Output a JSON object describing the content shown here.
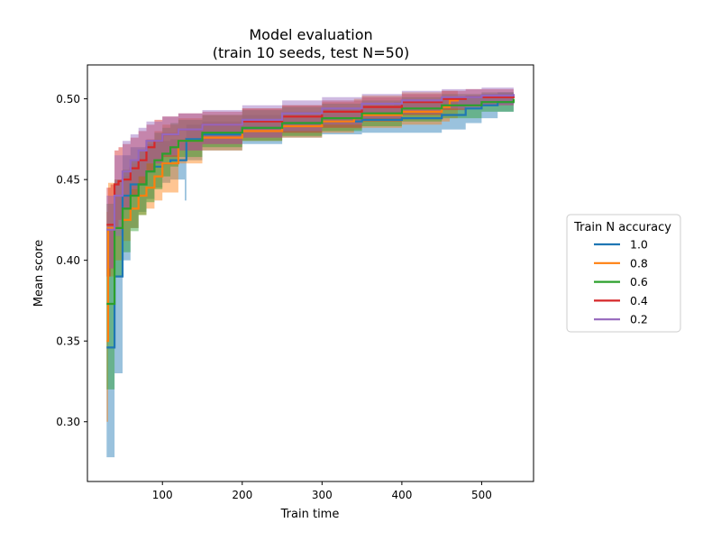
{
  "chart_data": {
    "type": "line",
    "title": "Model evaluation",
    "subtitle": "(train 10 seeds, test N=50)",
    "xlabel": "Train time",
    "ylabel": "Mean score",
    "xlim": [
      6,
      565
    ],
    "ylim": [
      0.263,
      0.521
    ],
    "xticks": [
      100,
      200,
      300,
      400,
      500
    ],
    "xtick_labels": [
      "100",
      "200",
      "300",
      "400",
      "500"
    ],
    "yticks": [
      0.3,
      0.35,
      0.4,
      0.45,
      0.5
    ],
    "ytick_labels": [
      "0.30",
      "0.35",
      "0.40",
      "0.45",
      "0.50"
    ],
    "grid": false,
    "legend": {
      "title": "Train N accuracy",
      "placement": "center-right-outside"
    },
    "band_opacity": 0.45,
    "series": [
      {
        "name": "1.0",
        "color": "#1f77b4",
        "x": [
          30,
          40,
          50,
          60,
          70,
          80,
          90,
          100,
          110,
          128,
          130,
          150,
          200,
          250,
          300,
          350,
          390,
          400,
          450,
          480,
          500,
          520,
          540
        ],
        "y": [
          0.346,
          0.39,
          0.44,
          0.447,
          0.447,
          0.455,
          0.458,
          0.46,
          0.462,
          0.462,
          0.475,
          0.478,
          0.482,
          0.485,
          0.486,
          0.487,
          0.487,
          0.488,
          0.49,
          0.494,
          0.496,
          0.498,
          0.499
        ],
        "lower": [
          0.278,
          0.33,
          0.4,
          0.42,
          0.43,
          0.438,
          0.445,
          0.448,
          0.45,
          0.437,
          0.462,
          0.468,
          0.472,
          0.476,
          0.478,
          0.479,
          0.479,
          0.479,
          0.481,
          0.485,
          0.488,
          0.492,
          0.494
        ],
        "upper": [
          0.42,
          0.44,
          0.465,
          0.47,
          0.47,
          0.472,
          0.474,
          0.474,
          0.475,
          0.476,
          0.484,
          0.486,
          0.49,
          0.492,
          0.494,
          0.496,
          0.498,
          0.499,
          0.501,
          0.502,
          0.503,
          0.504,
          0.505
        ]
      },
      {
        "name": "0.8",
        "color": "#ff7f0e",
        "x": [
          30,
          32,
          40,
          50,
          60,
          70,
          80,
          90,
          100,
          120,
          150,
          200,
          250,
          300,
          340,
          350,
          400,
          450,
          460,
          470
        ],
        "y": [
          0.35,
          0.42,
          0.42,
          0.425,
          0.432,
          0.44,
          0.445,
          0.452,
          0.46,
          0.474,
          0.476,
          0.48,
          0.483,
          0.486,
          0.488,
          0.49,
          0.492,
          0.495,
          0.499,
          0.5
        ],
        "lower": [
          0.3,
          0.39,
          0.4,
          0.412,
          0.42,
          0.428,
          0.432,
          0.437,
          0.442,
          0.46,
          0.468,
          0.474,
          0.476,
          0.479,
          0.481,
          0.482,
          0.484,
          0.486,
          0.488,
          0.49
        ],
        "upper": [
          0.43,
          0.448,
          0.45,
          0.452,
          0.46,
          0.468,
          0.475,
          0.48,
          0.484,
          0.488,
          0.49,
          0.494,
          0.496,
          0.498,
          0.5,
          0.502,
          0.504,
          0.505,
          0.505,
          0.506
        ]
      },
      {
        "name": "0.6",
        "color": "#2ca02c",
        "x": [
          30,
          40,
          50,
          60,
          70,
          80,
          90,
          100,
          110,
          120,
          150,
          200,
          250,
          300,
          350,
          400,
          450,
          500,
          540
        ],
        "y": [
          0.373,
          0.42,
          0.432,
          0.44,
          0.447,
          0.455,
          0.462,
          0.466,
          0.47,
          0.474,
          0.479,
          0.482,
          0.485,
          0.488,
          0.491,
          0.494,
          0.496,
          0.498,
          0.5
        ],
        "lower": [
          0.32,
          0.39,
          0.405,
          0.418,
          0.428,
          0.436,
          0.444,
          0.452,
          0.458,
          0.464,
          0.47,
          0.474,
          0.477,
          0.48,
          0.483,
          0.486,
          0.488,
          0.492,
          0.495
        ],
        "upper": [
          0.435,
          0.45,
          0.456,
          0.462,
          0.468,
          0.474,
          0.479,
          0.482,
          0.485,
          0.487,
          0.49,
          0.493,
          0.495,
          0.497,
          0.499,
          0.501,
          0.503,
          0.504,
          0.505
        ]
      },
      {
        "name": "0.4",
        "color": "#d62728",
        "x": [
          30,
          35,
          40,
          45,
          50,
          60,
          70,
          80,
          90,
          100,
          120,
          150,
          200,
          250,
          300,
          350,
          400,
          450,
          480,
          500,
          540
        ],
        "y": [
          0.422,
          0.422,
          0.447,
          0.449,
          0.45,
          0.457,
          0.462,
          0.47,
          0.474,
          0.478,
          0.481,
          0.484,
          0.486,
          0.489,
          0.492,
          0.495,
          0.498,
          0.5,
          0.501,
          0.501,
          0.502
        ],
        "lower": [
          0.39,
          0.395,
          0.42,
          0.425,
          0.432,
          0.44,
          0.447,
          0.455,
          0.46,
          0.464,
          0.468,
          0.472,
          0.476,
          0.479,
          0.482,
          0.486,
          0.49,
          0.493,
          0.495,
          0.496,
          0.497
        ],
        "upper": [
          0.445,
          0.447,
          0.468,
          0.47,
          0.472,
          0.476,
          0.48,
          0.484,
          0.487,
          0.489,
          0.491,
          0.492,
          0.494,
          0.496,
          0.499,
          0.501,
          0.503,
          0.505,
          0.506,
          0.506,
          0.507
        ]
      },
      {
        "name": "0.2",
        "color": "#9467bd",
        "x": [
          30,
          40,
          50,
          60,
          70,
          80,
          100,
          120,
          150,
          200,
          250,
          300,
          350,
          400,
          450,
          500,
          540
        ],
        "y": [
          0.419,
          0.44,
          0.455,
          0.462,
          0.468,
          0.474,
          0.478,
          0.481,
          0.484,
          0.487,
          0.491,
          0.494,
          0.497,
          0.499,
          0.501,
          0.502,
          0.503
        ],
        "lower": [
          0.395,
          0.415,
          0.432,
          0.444,
          0.452,
          0.46,
          0.465,
          0.468,
          0.472,
          0.476,
          0.48,
          0.484,
          0.488,
          0.491,
          0.494,
          0.496,
          0.497
        ],
        "upper": [
          0.44,
          0.465,
          0.474,
          0.478,
          0.482,
          0.486,
          0.489,
          0.491,
          0.493,
          0.496,
          0.499,
          0.501,
          0.503,
          0.505,
          0.506,
          0.507,
          0.508
        ]
      }
    ]
  }
}
